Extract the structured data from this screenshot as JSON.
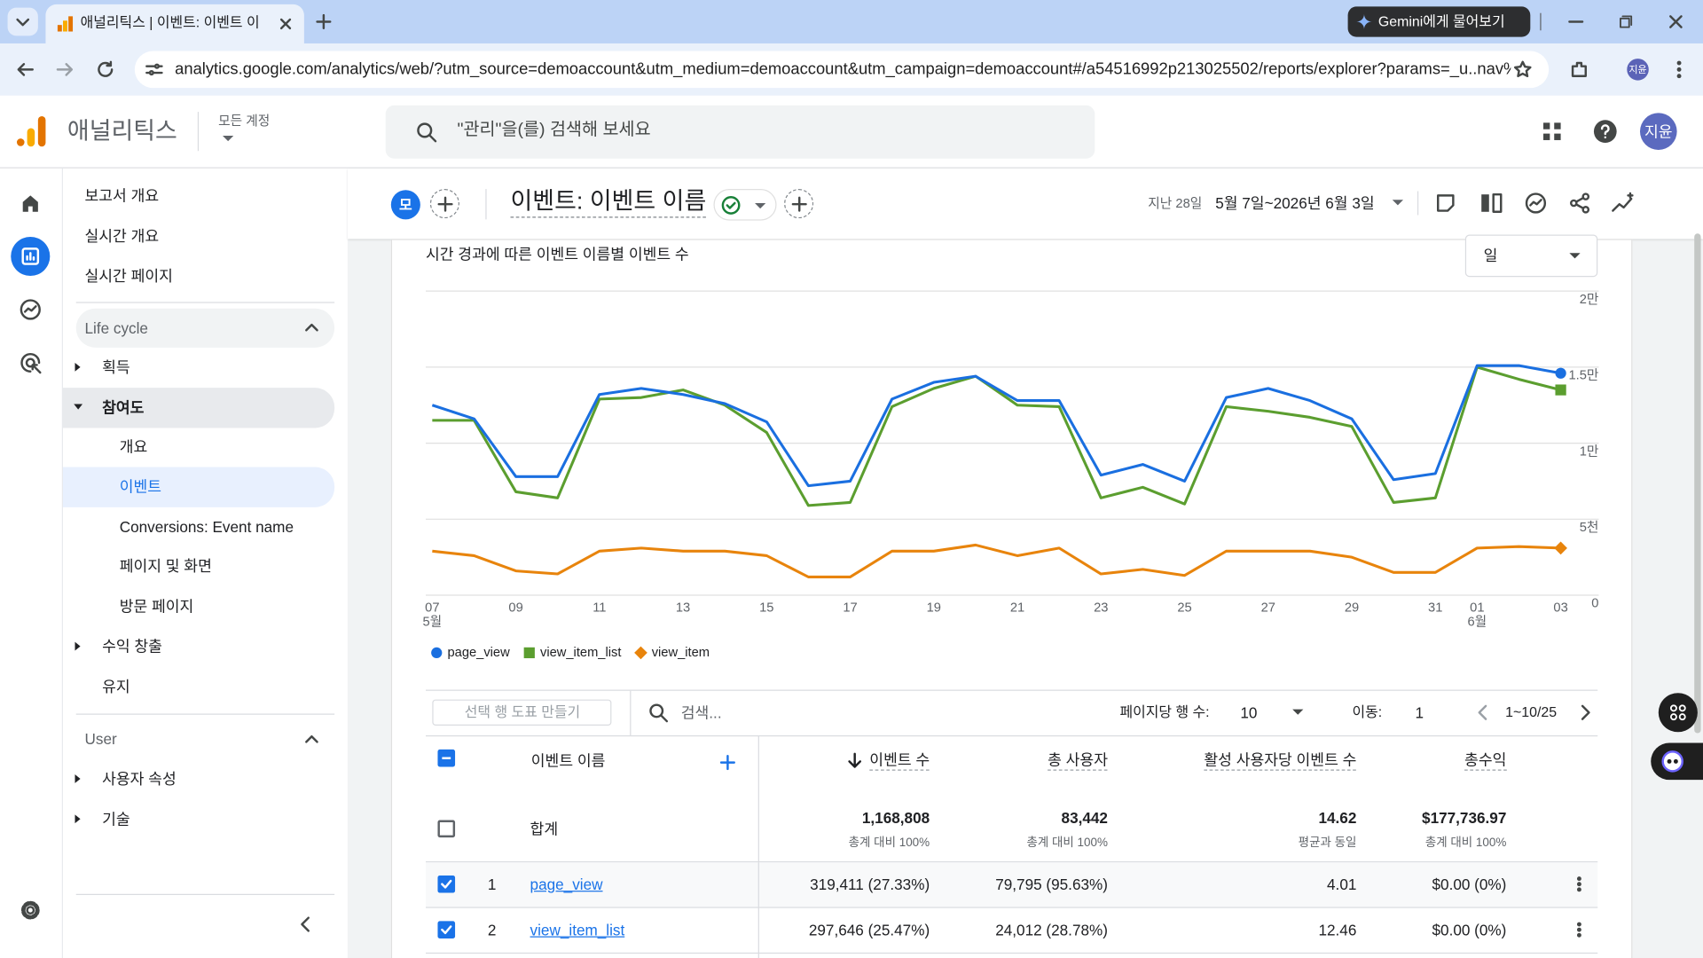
{
  "browser": {
    "tab_title": "애널리틱스 | 이벤트: 이벤트 이",
    "gemini_button": "Gemini에게 물어보기",
    "url": "analytics.google.com/analytics/web/?utm_source=demoaccount&utm_medium=demoaccount&utm_campaign=demoaccount#/a54516992p213025502/reports/explorer?params=_u..nav%...",
    "profile": "지윤"
  },
  "header": {
    "product": "애널리틱스",
    "account_label": "모든 계정",
    "search_placeholder": "\"관리\"을(를) 검색해 보세요",
    "avatar": "지윤"
  },
  "nav": {
    "top": [
      "보고서 개요",
      "실시간 개요",
      "실시간 페이지"
    ],
    "life_cycle": {
      "title": "Life cycle",
      "acquisition": "획득",
      "engagement": "참여도",
      "engagement_items": [
        "개요",
        "이벤트",
        "Conversions: Event name",
        "페이지 및 화면",
        "방문 페이지"
      ],
      "monetization": "수익 창출",
      "retention": "유지"
    },
    "user": {
      "title": "User",
      "items": [
        "사용자 속성",
        "기술"
      ]
    }
  },
  "report": {
    "badge": "모",
    "title": "이벤트: 이벤트 이름",
    "date_prefix": "지난 28일",
    "date_range": "5월 7일~2026년 6월 3일"
  },
  "chart": {
    "type": "line",
    "title": "시간 경과에 따른 이벤트 이름별 이벤트 수",
    "granularity": "일",
    "categories": [
      "07",
      null,
      "09",
      null,
      "11",
      null,
      "13",
      null,
      "15",
      null,
      "17",
      null,
      "19",
      null,
      "21",
      null,
      "23",
      null,
      "25",
      null,
      "27",
      null,
      "29",
      null,
      "31",
      "01",
      null,
      "03"
    ],
    "category_months": [
      "5월",
      null,
      null,
      null,
      null,
      null,
      null,
      null,
      null,
      null,
      null,
      null,
      null,
      null,
      null,
      null,
      null,
      null,
      null,
      null,
      null,
      null,
      null,
      null,
      null,
      "6월",
      null,
      null
    ],
    "ylim": [
      0,
      20000
    ],
    "yticks": [
      0,
      {
        "value": 5000,
        "label": "5천"
      },
      {
        "value": 10000,
        "label": "1만"
      },
      {
        "value": 15000,
        "label": "1.5만"
      },
      {
        "value": 20000,
        "label": "2만"
      }
    ],
    "grid": true,
    "series": [
      {
        "name": "page_view",
        "color": "#1a6fe0",
        "marker": "circle",
        "values": [
          12500,
          11600,
          7800,
          7800,
          13200,
          13600,
          13200,
          12600,
          11400,
          7200,
          7500,
          12900,
          14000,
          14400,
          12800,
          12800,
          7900,
          8600,
          7500,
          13000,
          13600,
          12800,
          11600,
          7600,
          8000,
          15100,
          15100,
          14600
        ]
      },
      {
        "name": "view_item_list",
        "color": "#5b9e2f",
        "marker": "square",
        "values": [
          11500,
          11500,
          6800,
          6400,
          12900,
          13000,
          13500,
          12500,
          10700,
          5900,
          6100,
          12400,
          13600,
          14400,
          12500,
          12400,
          6400,
          7100,
          6000,
          12400,
          12100,
          11700,
          11100,
          6100,
          6400,
          15000,
          14200,
          13500
        ]
      },
      {
        "name": "view_item",
        "color": "#e8840c",
        "marker": "diamond",
        "values": [
          2900,
          2600,
          1600,
          1400,
          2900,
          3100,
          2900,
          2900,
          2600,
          1200,
          1200,
          2900,
          2900,
          3300,
          2600,
          3100,
          1400,
          1700,
          1300,
          2900,
          2900,
          2900,
          2500,
          1500,
          1500,
          3100,
          3200,
          3100
        ]
      }
    ]
  },
  "table": {
    "toolbar": {
      "plot_rows": "선택 행 도표 만들기",
      "search": "검색...",
      "rows_per_page_label": "페이지당 행 수:",
      "rows_per_page": "10",
      "goto_label": "이동:",
      "goto": "1",
      "range": "1~10/25"
    },
    "columns": [
      "이벤트 이름",
      "이벤트 수",
      "총 사용자",
      "활성 사용자당 이벤트 수",
      "총수익"
    ],
    "totals": {
      "label": "합계",
      "cells": [
        [
          "1,168,808",
          "총계 대비 100%"
        ],
        [
          "83,442",
          "총계 대비 100%"
        ],
        [
          "14.62",
          "평균과 동일"
        ],
        [
          "$177,736.97",
          "총계 대비 100%"
        ]
      ]
    },
    "rows": [
      [
        "1",
        "page_view",
        "319,411 (27.33%)",
        "79,795 (95.63%)",
        "4.01",
        "$0.00 (0%)"
      ],
      [
        "2",
        "view_item_list",
        "297,646 (25.47%)",
        "24,012 (28.78%)",
        "12.46",
        "$0.00 (0%)"
      ]
    ]
  }
}
